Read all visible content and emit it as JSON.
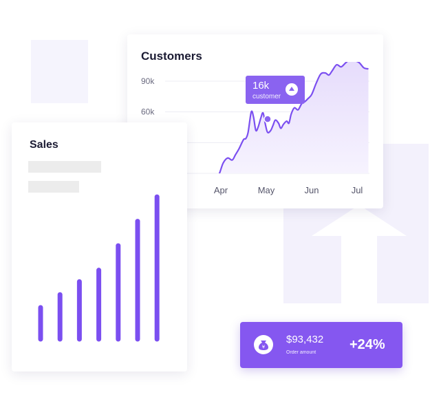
{
  "customers": {
    "title": "Customers",
    "tooltip": {
      "value": "16k",
      "label": "customer"
    }
  },
  "sales": {
    "title": "Sales"
  },
  "order": {
    "amount": "$93,432",
    "label": "Order amount",
    "change": "+24%"
  },
  "colors": {
    "accent": "#7b4ff0",
    "accent_light": "#8a63f0",
    "area_fill": "#efeafd"
  },
  "icons": {
    "tooltip_icon": "arrow-up-circle-icon",
    "order_icon": "money-bag-icon"
  },
  "chart_data": [
    {
      "type": "area",
      "title": "Customers",
      "x_categories": [
        "Apr",
        "May",
        "Jun",
        "Jul"
      ],
      "y_ticks": [
        "90k",
        "60k"
      ],
      "y_tick_values": [
        90,
        60
      ],
      "ylim": [
        0,
        120
      ],
      "grid": true,
      "x": [
        -0.15,
        -0.05,
        0.05,
        0.15,
        0.25,
        0.32,
        0.4,
        0.5,
        0.55,
        0.6,
        0.67,
        0.72,
        0.77,
        0.82,
        0.88,
        0.93,
        0.98,
        1.03,
        1.1,
        1.15,
        1.2,
        1.27,
        1.32,
        1.38,
        1.45,
        1.5,
        1.55,
        1.62,
        1.7,
        1.78,
        1.85,
        1.92,
        2.0,
        2.1,
        2.2,
        2.3,
        2.38,
        2.45,
        2.55,
        2.65,
        2.75,
        2.85,
        2.95,
        3.05,
        3.15,
        3.25
      ],
      "values": [
        -5,
        -2,
        10,
        15,
        13,
        18,
        24,
        33,
        34,
        40,
        60,
        55,
        42,
        45,
        54,
        59,
        48,
        40,
        42,
        47,
        52,
        49,
        44,
        48,
        51,
        49,
        58,
        64,
        62,
        68,
        70,
        73,
        77,
        88,
        97,
        98,
        96,
        100,
        106,
        104,
        108,
        111,
        110,
        108,
        103,
        102
      ],
      "annotation": {
        "x": 1.03,
        "y": 53,
        "value": "16k",
        "label": "customer"
      }
    },
    {
      "type": "bar",
      "title": "Sales",
      "values": [
        22,
        31,
        40,
        48,
        65,
        82,
        99
      ],
      "ylim": [
        0,
        100
      ]
    }
  ]
}
